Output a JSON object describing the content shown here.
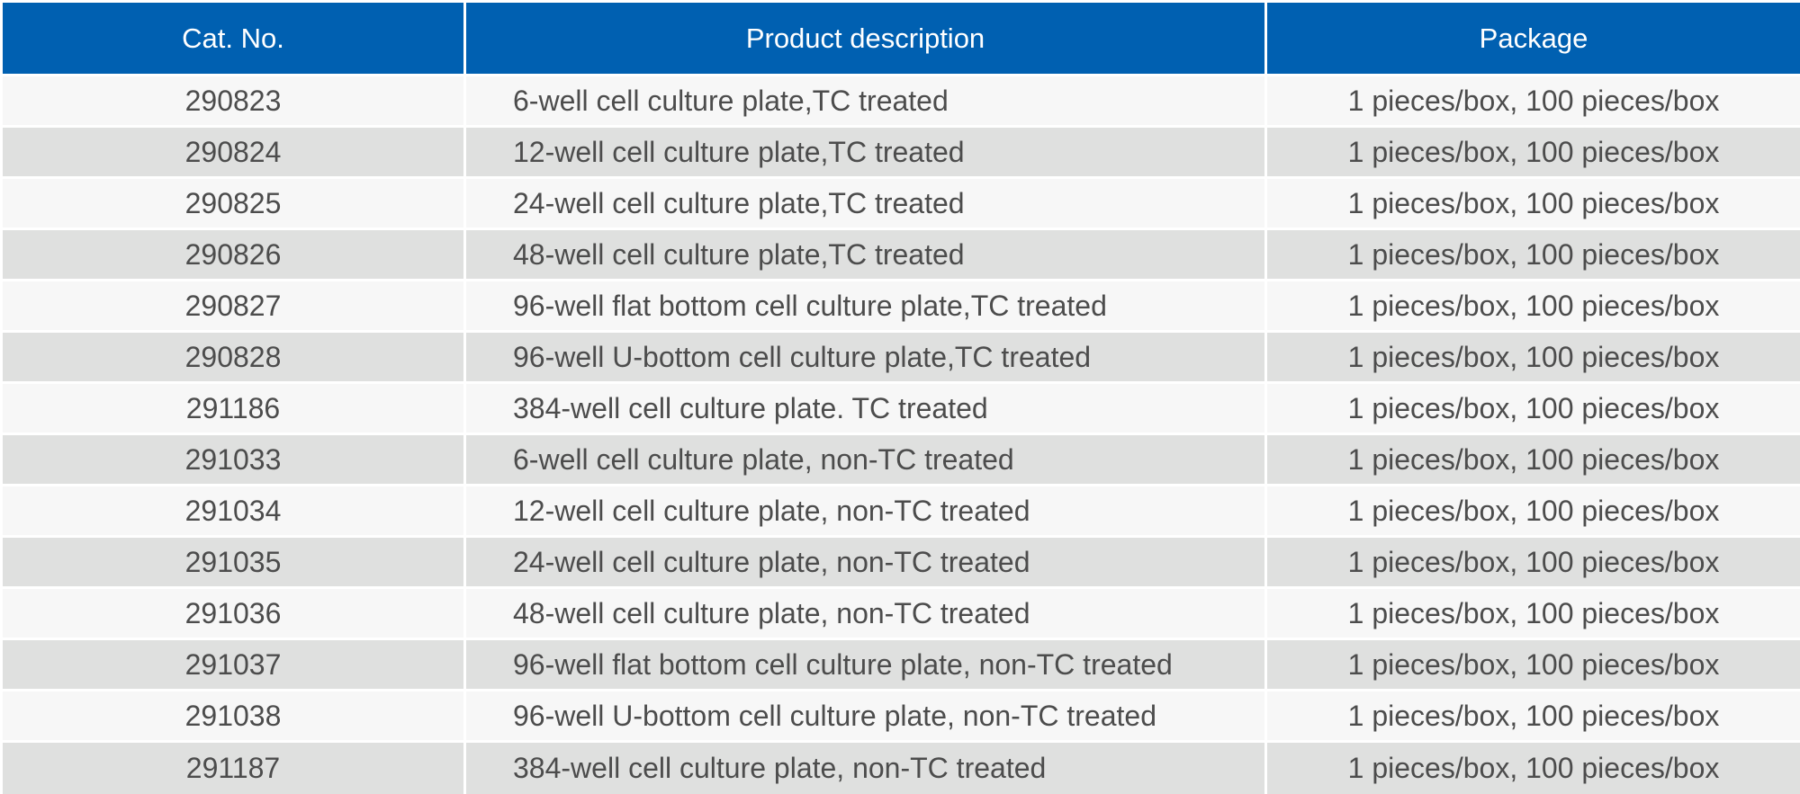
{
  "table": {
    "headers": [
      "Cat. No.",
      "Product description",
      "Package"
    ],
    "rows": [
      {
        "cat_no": "290823",
        "description": "6-well cell culture plate,TC treated",
        "package": "1 pieces/box, 100 pieces/box"
      },
      {
        "cat_no": "290824",
        "description": "12-well cell culture plate,TC treated",
        "package": "1 pieces/box, 100 pieces/box"
      },
      {
        "cat_no": "290825",
        "description": "24-well cell culture plate,TC treated",
        "package": "1 pieces/box, 100 pieces/box"
      },
      {
        "cat_no": "290826",
        "description": "48-well cell culture plate,TC treated",
        "package": "1 pieces/box, 100 pieces/box"
      },
      {
        "cat_no": "290827",
        "description": "96-well flat bottom cell culture plate,TC treated",
        "package": "1 pieces/box, 100 pieces/box"
      },
      {
        "cat_no": "290828",
        "description": "96-well U-bottom cell culture plate,TC treated",
        "package": "1 pieces/box, 100 pieces/box"
      },
      {
        "cat_no": "291186",
        "description": "384-well cell culture plate. TC treated",
        "package": "1 pieces/box, 100 pieces/box"
      },
      {
        "cat_no": "291033",
        "description": "6-well cell culture plate, non-TC treated",
        "package": "1 pieces/box, 100 pieces/box"
      },
      {
        "cat_no": "291034",
        "description": "12-well cell culture plate, non-TC treated",
        "package": "1 pieces/box, 100 pieces/box"
      },
      {
        "cat_no": "291035",
        "description": "24-well cell culture plate, non-TC treated",
        "package": "1 pieces/box, 100 pieces/box"
      },
      {
        "cat_no": "291036",
        "description": "48-well cell culture plate, non-TC treated",
        "package": "1 pieces/box, 100 pieces/box"
      },
      {
        "cat_no": "291037",
        "description": "96-well flat bottom cell culture plate, non-TC treated",
        "package": "1 pieces/box, 100 pieces/box"
      },
      {
        "cat_no": "291038",
        "description": "96-well U-bottom cell culture plate, non-TC treated",
        "package": "1 pieces/box, 100 pieces/box"
      },
      {
        "cat_no": "291187",
        "description": "384-well cell culture plate, non-TC treated",
        "package": "1 pieces/box, 100 pieces/box"
      }
    ]
  },
  "colors": {
    "header_background": "#0060b1",
    "header_text": "#ffffff",
    "row_light": "#f7f7f7",
    "row_dark": "#dfe0df",
    "body_text": "#4c4c4c"
  }
}
